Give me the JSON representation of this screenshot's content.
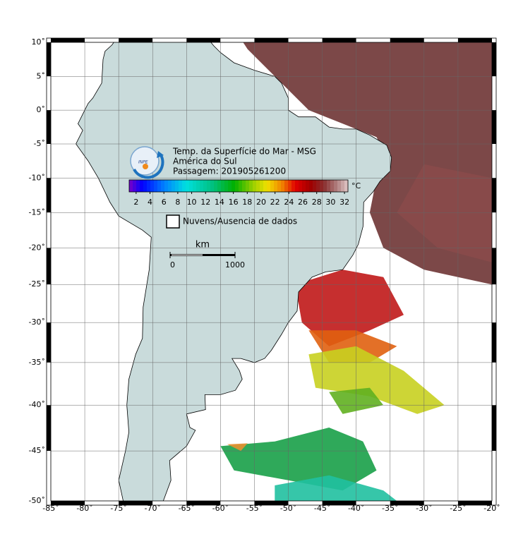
{
  "map": {
    "title": "Temp. da Superfície do Mar - MSG",
    "subtitle": "América do Sul",
    "pass": "Passagem: 201905261200",
    "logo": "INPE",
    "colorbar": {
      "unit": "°C",
      "range": [
        1,
        32.5
      ],
      "ticks": [
        2,
        4,
        6,
        8,
        10,
        12,
        14,
        16,
        18,
        20,
        22,
        24,
        26,
        28,
        30,
        32
      ]
    },
    "legend": "Nuvens/Ausencia de dados",
    "scale_bar": {
      "unit": "km",
      "ticks": [
        0,
        1000
      ]
    },
    "lon_range": [
      -85,
      -20
    ],
    "lat_range": [
      10,
      -50
    ],
    "lon_ticks": [
      {
        "value": -85,
        "label": "-85˚"
      },
      {
        "value": -80,
        "label": "-80˚"
      },
      {
        "value": -75,
        "label": "-75˚"
      },
      {
        "value": -70,
        "label": "-70˚"
      },
      {
        "value": -65,
        "label": "-65˚"
      },
      {
        "value": -60,
        "label": "-60˚"
      },
      {
        "value": -55,
        "label": "-55˚"
      },
      {
        "value": -50,
        "label": "-50˚"
      },
      {
        "value": -45,
        "label": "-45˚"
      },
      {
        "value": -40,
        "label": "-40˚"
      },
      {
        "value": -35,
        "label": "-35˚"
      },
      {
        "value": -30,
        "label": "-30˚"
      },
      {
        "value": -25,
        "label": "-25˚"
      },
      {
        "value": -20,
        "label": "-20˚"
      }
    ],
    "lat_ticks": [
      {
        "value": 10,
        "label": "10˚"
      },
      {
        "value": 5,
        "label": "5˚"
      },
      {
        "value": 0,
        "label": "0˚"
      },
      {
        "value": -5,
        "label": "-5˚"
      },
      {
        "value": -10,
        "label": "-10˚"
      },
      {
        "value": -15,
        "label": "-15˚"
      },
      {
        "value": -20,
        "label": "-20˚"
      },
      {
        "value": -25,
        "label": "-25˚"
      },
      {
        "value": -30,
        "label": "-30˚"
      },
      {
        "value": -35,
        "label": "-35˚"
      },
      {
        "value": -40,
        "label": "-40˚"
      },
      {
        "value": -45,
        "label": "-45˚"
      },
      {
        "value": -50,
        "label": "-50˚"
      }
    ]
  }
}
